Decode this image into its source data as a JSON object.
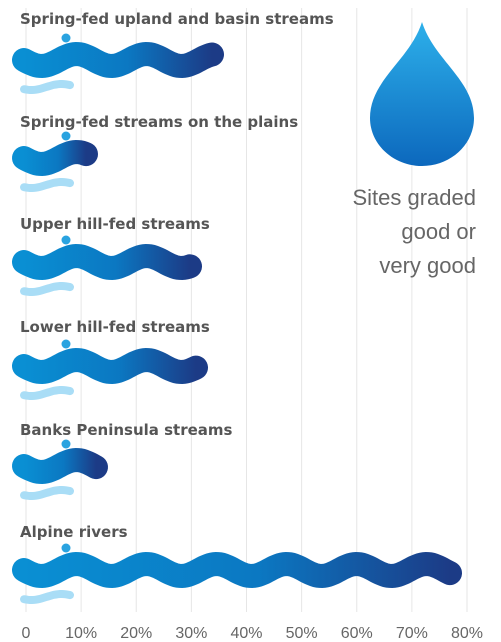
{
  "chart_data": {
    "type": "bar",
    "orientation": "horizontal",
    "categories": [
      "Spring-fed upland and basin streams",
      "Spring-fed streams on the plains",
      "Upper hill-fed streams",
      "Lower hill-fed streams",
      "Banks Peninsula streams",
      "Alpine rivers"
    ],
    "values": [
      36,
      13,
      32,
      33,
      15,
      79
    ],
    "legend": [
      "Sites graded",
      "good or",
      "very good"
    ],
    "xlim": [
      0,
      80
    ],
    "xticks": [
      0,
      {
        "value": 10,
        "label": "10%"
      },
      {
        "value": 20,
        "label": "20%"
      },
      {
        "value": 30,
        "label": "30%"
      },
      {
        "value": 40,
        "label": "40%"
      },
      {
        "value": 50,
        "label": "50%"
      },
      {
        "value": 60,
        "label": "60%"
      },
      {
        "value": 70,
        "label": "70%"
      },
      {
        "value": 80,
        "label": "80%"
      }
    ],
    "grid": true,
    "color": "#0b86cc"
  }
}
